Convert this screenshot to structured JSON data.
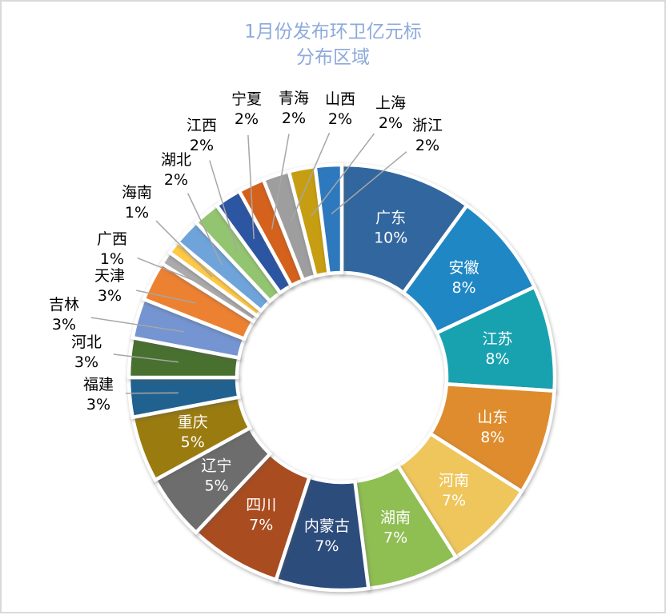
{
  "page": {
    "background": "#FFFFFF",
    "border_color": "#D9D9D9"
  },
  "title": {
    "line1": "1月份发布环卫亿元标",
    "line2": "分布区域",
    "color": "#8EA9DB"
  },
  "chart_data": {
    "type": "pie",
    "subtype": "donut",
    "title": "1月份发布环卫亿元标分布区域",
    "legend_position": "none",
    "start_angle_deg": 0,
    "direction": "clockwise",
    "hole_ratio": 0.49,
    "units": "percent",
    "label_colors": {
      "inside": "#FFFFFF",
      "outside": "#000000"
    },
    "leader_line_color": "#A6A6A6",
    "points": [
      {
        "label": "广东",
        "pct": 10,
        "pct_text": "10%",
        "color": "#31679E"
      },
      {
        "label": "安徽",
        "pct": 8,
        "pct_text": "8%",
        "color": "#1F87C4"
      },
      {
        "label": "江苏",
        "pct": 8,
        "pct_text": "8%",
        "color": "#18A2B0"
      },
      {
        "label": "山东",
        "pct": 8,
        "pct_text": "8%",
        "color": "#DE8C2D"
      },
      {
        "label": "河南",
        "pct": 7,
        "pct_text": "7%",
        "color": "#EFC65C"
      },
      {
        "label": "湖南",
        "pct": 7,
        "pct_text": "7%",
        "color": "#8FBE53"
      },
      {
        "label": "内蒙古",
        "pct": 7,
        "pct_text": "7%",
        "color": "#2C4C7C"
      },
      {
        "label": "四川",
        "pct": 7,
        "pct_text": "7%",
        "color": "#A94C20"
      },
      {
        "label": "辽宁",
        "pct": 5,
        "pct_text": "5%",
        "color": "#6D6D6D"
      },
      {
        "label": "重庆",
        "pct": 5,
        "pct_text": "5%",
        "color": "#9A7B0F"
      },
      {
        "label": "福建",
        "pct": 3,
        "pct_text": "3%",
        "color": "#20618F"
      },
      {
        "label": "河北",
        "pct": 3,
        "pct_text": "3%",
        "color": "#48702F"
      },
      {
        "label": "吉林",
        "pct": 3,
        "pct_text": "3%",
        "color": "#7495D1"
      },
      {
        "label": "天津",
        "pct": 3,
        "pct_text": "3%",
        "color": "#ED8132"
      },
      {
        "label": "广西",
        "pct": 1,
        "pct_text": "1%",
        "color": "#ABABAB"
      },
      {
        "label": "海南",
        "pct": 1,
        "pct_text": "1%",
        "color": "#FFC845"
      },
      {
        "label": "湖北",
        "pct": 2,
        "pct_text": "2%",
        "color": "#6FA4DB"
      },
      {
        "label": "江西",
        "pct": 2,
        "pct_text": "2%",
        "color": "#93C571"
      },
      {
        "label": "宁夏",
        "pct": 2,
        "pct_text": "2%",
        "color": "#2C55A2"
      },
      {
        "label": "青海",
        "pct": 2,
        "pct_text": "2%",
        "color": "#D4611C"
      },
      {
        "label": "山西",
        "pct": 2,
        "pct_text": "2%",
        "color": "#9E9E9E"
      },
      {
        "label": "上海",
        "pct": 2,
        "pct_text": "2%",
        "color": "#C79E11"
      },
      {
        "label": "浙江",
        "pct": 2,
        "pct_text": "2%",
        "color": "#2E79BD"
      }
    ]
  }
}
